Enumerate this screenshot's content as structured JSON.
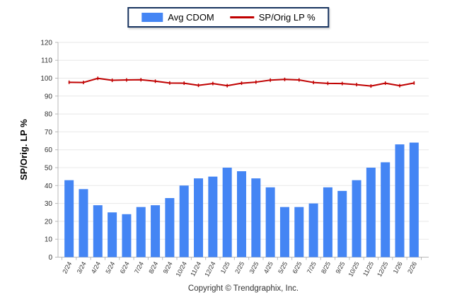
{
  "legend": {
    "items": [
      {
        "label": "Avg CDOM",
        "swatch": "bar-swatch",
        "color": "#4485f4"
      },
      {
        "label": "SP/Orig LP %",
        "swatch": "line-swatch",
        "color": "#c00000"
      }
    ]
  },
  "footer": {
    "copyright": "Copyright © Trendgraphix, Inc."
  },
  "colors": {
    "bar": "#4485f4",
    "line": "#c00000",
    "legend_border": "#17335f",
    "grid": "#e8e8e8",
    "axis": "#b8b8b8",
    "tick_text": "#333333",
    "axis_title": "#000000"
  },
  "chart_data": {
    "type": "bar",
    "title": "",
    "xlabel": "",
    "ylabel": "SP/Orig. LP %",
    "ylim": [
      0,
      120
    ],
    "ytick_step": 10,
    "grid": true,
    "legend_position": "top-center",
    "categories": [
      "2/24",
      "3/24",
      "4/24",
      "5/24",
      "6/24",
      "7/24",
      "8/24",
      "9/24",
      "10/24",
      "11/24",
      "12/24",
      "1/25",
      "2/25",
      "3/25",
      "4/25",
      "5/25",
      "6/25",
      "7/25",
      "8/25",
      "9/25",
      "10/25",
      "11/25",
      "12/25",
      "1/26",
      "2/26"
    ],
    "series": [
      {
        "name": "Avg CDOM",
        "type": "bar",
        "color": "#4485f4",
        "values": [
          43,
          38,
          29,
          25,
          24,
          28,
          29,
          33,
          40,
          44,
          45,
          50,
          48,
          44,
          39,
          28,
          28,
          30,
          39,
          37,
          43,
          50,
          53,
          63,
          64
        ]
      },
      {
        "name": "SP/Orig LP %",
        "type": "line",
        "color": "#c00000",
        "values": [
          97.7,
          97.6,
          99.9,
          98.8,
          99.0,
          99.1,
          98.3,
          97.3,
          97.2,
          96.0,
          97.0,
          95.8,
          97.2,
          97.8,
          98.9,
          99.3,
          99.0,
          97.6,
          97.1,
          97.0,
          96.4,
          95.6,
          97.2,
          95.8,
          97.3
        ]
      }
    ]
  }
}
